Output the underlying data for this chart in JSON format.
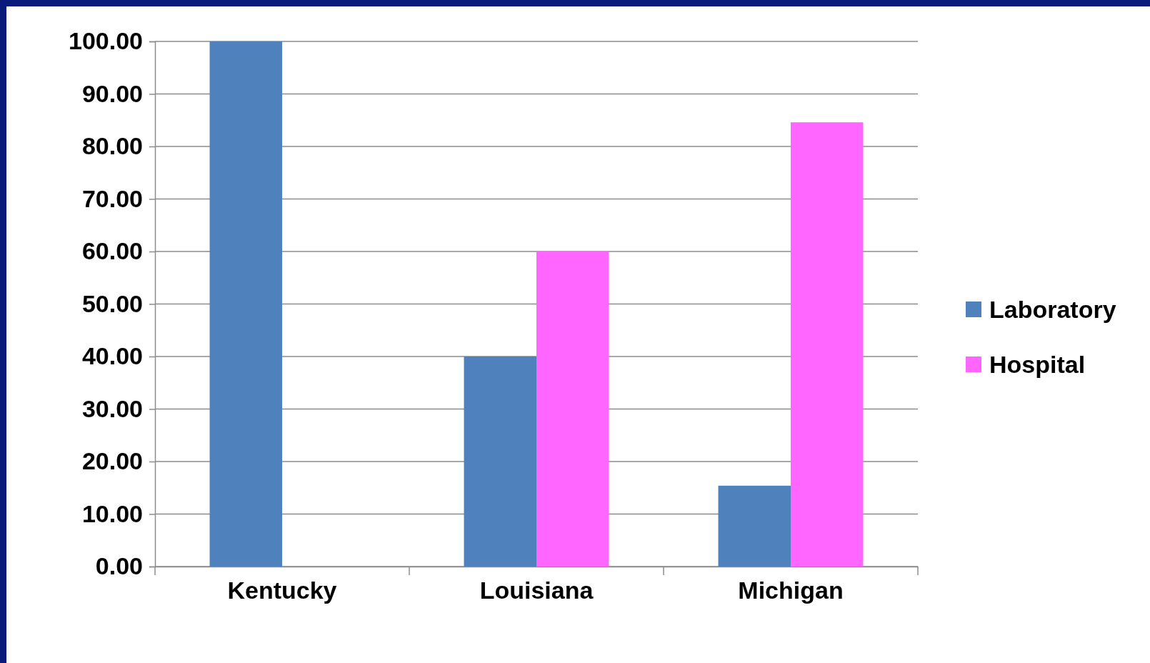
{
  "chart_data": {
    "type": "bar",
    "categories": [
      "Kentucky",
      "Louisiana",
      "Michigan"
    ],
    "series": [
      {
        "name": "Laboratory",
        "color": "#4f81bd",
        "values": [
          100,
          40,
          15.4
        ]
      },
      {
        "name": "Hospital",
        "color": "#ff66ff",
        "values": [
          0,
          60,
          84.6
        ]
      }
    ],
    "ylim": [
      0,
      100
    ],
    "yticks": [
      {
        "value": 0,
        "label": "0.00"
      },
      {
        "value": 10,
        "label": "10.00"
      },
      {
        "value": 20,
        "label": "20.00"
      },
      {
        "value": 30,
        "label": "30.00"
      },
      {
        "value": 40,
        "label": "40.00"
      },
      {
        "value": 50,
        "label": "50.00"
      },
      {
        "value": 60,
        "label": "60.00"
      },
      {
        "value": 70,
        "label": "70.00"
      },
      {
        "value": 80,
        "label": "80.00"
      },
      {
        "value": 90,
        "label": "90.00"
      },
      {
        "value": 100,
        "label": "100.00"
      }
    ],
    "grid": "y",
    "legend": "right"
  }
}
